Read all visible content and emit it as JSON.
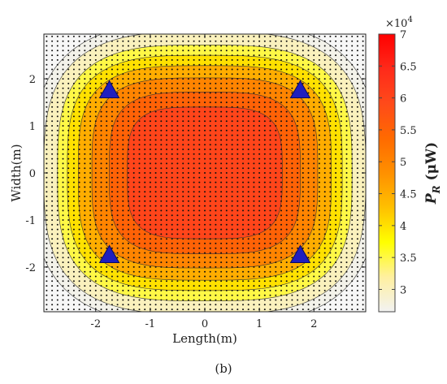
{
  "chart_data": {
    "type": "heatmap",
    "subtype": "filled-contour",
    "title": "",
    "xlabel": "Length(m)",
    "ylabel": "Width(m)",
    "xlim": [
      -2.95,
      2.95
    ],
    "ylim": [
      -2.95,
      2.95
    ],
    "x_ticks": [
      -2,
      -1,
      0,
      1,
      2
    ],
    "y_ticks": [
      -2,
      -1,
      0,
      1,
      2
    ],
    "x_tick_labels": [
      "-2",
      "-1",
      "0",
      "1",
      "2"
    ],
    "y_tick_labels": [
      "-2",
      "-1",
      "0",
      "1",
      "2"
    ],
    "grid": false,
    "contour_levels": [
      27000,
      30000,
      35000,
      40000,
      45000,
      50000,
      55000,
      60000,
      65000
    ],
    "contour_ellipses": [
      {
        "level": 27000,
        "a": 3.15,
        "b": 3.2,
        "n": 3.0
      },
      {
        "level": 30000,
        "a": 2.95,
        "b": 3.0,
        "n": 3.1
      },
      {
        "level": 35000,
        "a": 2.7,
        "b": 2.72,
        "n": 3.2
      },
      {
        "level": 40000,
        "a": 2.52,
        "b": 2.5,
        "n": 3.3
      },
      {
        "level": 45000,
        "a": 2.32,
        "b": 2.28,
        "n": 3.4
      },
      {
        "level": 50000,
        "a": 2.07,
        "b": 2.02,
        "n": 3.5
      },
      {
        "level": 55000,
        "a": 1.75,
        "b": 1.72,
        "n": 3.6
      },
      {
        "level": 60000,
        "a": 1.42,
        "b": 1.4,
        "n": 3.7
      }
    ],
    "transmitters": [
      {
        "x": -1.75,
        "y": 1.75
      },
      {
        "x": 1.75,
        "y": 1.75
      },
      {
        "x": -1.75,
        "y": -1.75
      },
      {
        "x": 1.75,
        "y": -1.75
      }
    ],
    "transmitter_color": "#1f1fbf",
    "sample_point_spacing": 0.1,
    "colorbar": {
      "label_main": "P",
      "label_sub": "R",
      "label_unit": " (μW)",
      "multiplier": "×10",
      "multiplier_exp": "4",
      "min": 2.65,
      "max": 7,
      "ticks": [
        3,
        3.5,
        4,
        4.5,
        5,
        5.5,
        6,
        6.5,
        7
      ],
      "tick_labels": [
        "3",
        "3.5",
        "4",
        "4.5",
        "5",
        "5.5",
        "6",
        "6.5",
        "7"
      ],
      "colors": [
        "#f2f2f2",
        "#fff0a0",
        "#ffff00",
        "#ffc000",
        "#ff9000",
        "#ff6a00",
        "#ff4a1a",
        "#ff2a1a",
        "#ff0000"
      ]
    },
    "panel_label": "(b)"
  }
}
